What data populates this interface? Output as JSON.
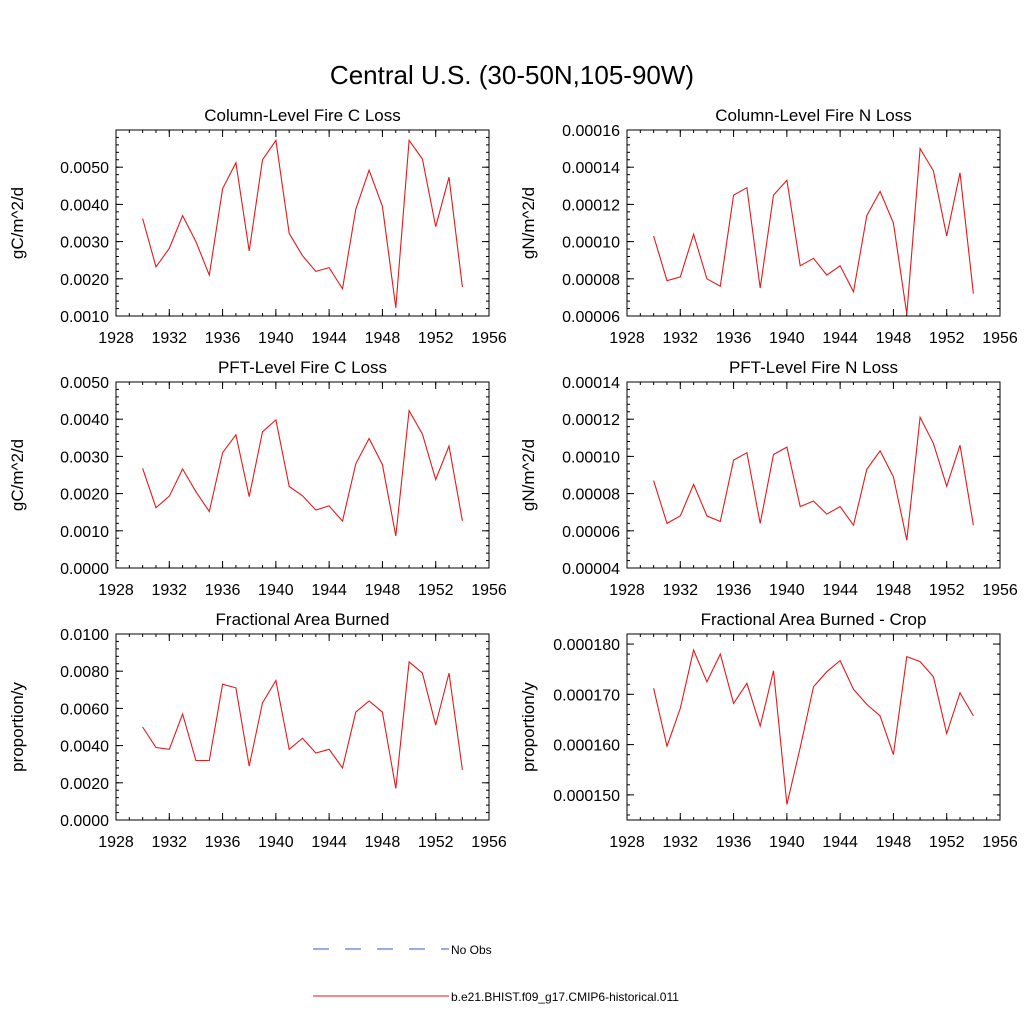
{
  "figure": {
    "title": "Central U.S. (30-50N,105-90W)",
    "legend": [
      {
        "label": "No Obs",
        "color": "#3b5bb5",
        "style": "dashed"
      },
      {
        "label": "b.e21.BHIST.f09_g17.CMIP6-historical.011",
        "color": "#e31a1c",
        "style": "solid"
      }
    ]
  },
  "chart_data": [
    {
      "type": "line",
      "title": "Column-Level Fire C Loss",
      "ylabel": "gC/m^2/d",
      "xlim": [
        1928,
        1956
      ],
      "ylim": [
        0.001,
        0.006
      ],
      "xticks": [
        1928,
        1932,
        1936,
        1940,
        1944,
        1948,
        1952,
        1956
      ],
      "xticklabels": [
        "1928",
        "1932",
        "1936",
        "1940",
        "1944",
        "1948",
        "1952",
        "1956"
      ],
      "yticks": [
        0.001,
        0.002,
        0.003,
        0.004,
        0.005
      ],
      "yticklabels": [
        "0.0010",
        "0.0020",
        "0.0030",
        "0.0040",
        "0.0050"
      ],
      "x": [
        1930,
        1931,
        1932,
        1933,
        1934,
        1935,
        1936,
        1937,
        1938,
        1939,
        1940,
        1941,
        1942,
        1943,
        1944,
        1945,
        1946,
        1947,
        1948,
        1949,
        1950,
        1951,
        1952,
        1953,
        1954
      ],
      "series": [
        {
          "color": "#e31a1c",
          "values": [
            0.00362,
            0.00232,
            0.00282,
            0.0037,
            0.003,
            0.0021,
            0.00442,
            0.00512,
            0.00275,
            0.0052,
            0.00572,
            0.00322,
            0.00262,
            0.0022,
            0.0023,
            0.00173,
            0.00387,
            0.00492,
            0.00395,
            0.00122,
            0.00572,
            0.00522,
            0.0034,
            0.00473,
            0.00178
          ]
        }
      ]
    },
    {
      "type": "line",
      "title": "Column-Level Fire N Loss",
      "ylabel": "gN/m^2/d",
      "xlim": [
        1928,
        1956
      ],
      "ylim": [
        6e-05,
        0.00016
      ],
      "xticks": [
        1928,
        1932,
        1936,
        1940,
        1944,
        1948,
        1952,
        1956
      ],
      "xticklabels": [
        "1928",
        "1932",
        "1936",
        "1940",
        "1944",
        "1948",
        "1952",
        "1956"
      ],
      "yticks": [
        6e-05,
        8e-05,
        0.0001,
        0.00012,
        0.00014,
        0.00016
      ],
      "yticklabels": [
        "0.00006",
        "0.00008",
        "0.00010",
        "0.00012",
        "0.00014",
        "0.00016"
      ],
      "x": [
        1930,
        1931,
        1932,
        1933,
        1934,
        1935,
        1936,
        1937,
        1938,
        1939,
        1940,
        1941,
        1942,
        1943,
        1944,
        1945,
        1946,
        1947,
        1948,
        1949,
        1950,
        1951,
        1952,
        1953,
        1954
      ],
      "series": [
        {
          "color": "#e31a1c",
          "values": [
            0.000103,
            7.9e-05,
            8.1e-05,
            0.000104,
            8e-05,
            7.6e-05,
            0.000125,
            0.000129,
            7.5e-05,
            0.000125,
            0.000133,
            8.7e-05,
            9.1e-05,
            8.2e-05,
            8.7e-05,
            7.3e-05,
            0.000114,
            0.000127,
            0.00011,
            6.1e-05,
            0.00015,
            0.000138,
            0.000103,
            0.000137,
            7.2e-05
          ]
        }
      ]
    },
    {
      "type": "line",
      "title": "PFT-Level Fire C Loss",
      "ylabel": "gC/m^2/d",
      "xlim": [
        1928,
        1956
      ],
      "ylim": [
        0.0,
        0.005
      ],
      "xticks": [
        1928,
        1932,
        1936,
        1940,
        1944,
        1948,
        1952,
        1956
      ],
      "xticklabels": [
        "1928",
        "1932",
        "1936",
        "1940",
        "1944",
        "1948",
        "1952",
        "1956"
      ],
      "yticks": [
        0.0,
        0.001,
        0.002,
        0.003,
        0.004,
        0.005
      ],
      "yticklabels": [
        "0.0000",
        "0.0010",
        "0.0020",
        "0.0030",
        "0.0040",
        "0.0050"
      ],
      "x": [
        1930,
        1931,
        1932,
        1933,
        1934,
        1935,
        1936,
        1937,
        1938,
        1939,
        1940,
        1941,
        1942,
        1943,
        1944,
        1945,
        1946,
        1947,
        1948,
        1949,
        1950,
        1951,
        1952,
        1953,
        1954
      ],
      "series": [
        {
          "color": "#e31a1c",
          "values": [
            0.00268,
            0.00162,
            0.00193,
            0.00266,
            0.00205,
            0.00152,
            0.0031,
            0.00358,
            0.00192,
            0.00366,
            0.00398,
            0.00219,
            0.00194,
            0.00156,
            0.00167,
            0.00126,
            0.0028,
            0.00348,
            0.00278,
            0.00086,
            0.00423,
            0.0036,
            0.00238,
            0.00328,
            0.00127
          ]
        }
      ]
    },
    {
      "type": "line",
      "title": "PFT-Level Fire N Loss",
      "ylabel": "gN/m^2/d",
      "xlim": [
        1928,
        1956
      ],
      "ylim": [
        4e-05,
        0.00014
      ],
      "xticks": [
        1928,
        1932,
        1936,
        1940,
        1944,
        1948,
        1952,
        1956
      ],
      "xticklabels": [
        "1928",
        "1932",
        "1936",
        "1940",
        "1944",
        "1948",
        "1952",
        "1956"
      ],
      "yticks": [
        4e-05,
        6e-05,
        8e-05,
        0.0001,
        0.00012,
        0.00014
      ],
      "yticklabels": [
        "0.00004",
        "0.00006",
        "0.00008",
        "0.00010",
        "0.00012",
        "0.00014"
      ],
      "x": [
        1930,
        1931,
        1932,
        1933,
        1934,
        1935,
        1936,
        1937,
        1938,
        1939,
        1940,
        1941,
        1942,
        1943,
        1944,
        1945,
        1946,
        1947,
        1948,
        1949,
        1950,
        1951,
        1952,
        1953,
        1954
      ],
      "series": [
        {
          "color": "#e31a1c",
          "values": [
            8.7e-05,
            6.4e-05,
            6.8e-05,
            8.5e-05,
            6.8e-05,
            6.5e-05,
            9.8e-05,
            0.000102,
            6.4e-05,
            0.000101,
            0.000105,
            7.3e-05,
            7.6e-05,
            6.9e-05,
            7.3e-05,
            6.3e-05,
            9.3e-05,
            0.000103,
            8.9e-05,
            5.5e-05,
            0.000121,
            0.000107,
            8.4e-05,
            0.000106,
            6.3e-05
          ]
        }
      ]
    },
    {
      "type": "line",
      "title": "Fractional Area Burned",
      "ylabel": "proportion/y",
      "xlim": [
        1928,
        1956
      ],
      "ylim": [
        0.0,
        0.01
      ],
      "xticks": [
        1928,
        1932,
        1936,
        1940,
        1944,
        1948,
        1952,
        1956
      ],
      "xticklabels": [
        "1928",
        "1932",
        "1936",
        "1940",
        "1944",
        "1948",
        "1952",
        "1956"
      ],
      "yticks": [
        0.0,
        0.002,
        0.004,
        0.006,
        0.008,
        0.01
      ],
      "yticklabels": [
        "0.0000",
        "0.0020",
        "0.0040",
        "0.0060",
        "0.0080",
        "0.0100"
      ],
      "x": [
        1930,
        1931,
        1932,
        1933,
        1934,
        1935,
        1936,
        1937,
        1938,
        1939,
        1940,
        1941,
        1942,
        1943,
        1944,
        1945,
        1946,
        1947,
        1948,
        1949,
        1950,
        1951,
        1952,
        1953,
        1954
      ],
      "series": [
        {
          "color": "#e31a1c",
          "values": [
            0.005,
            0.0039,
            0.0038,
            0.0057,
            0.0032,
            0.0032,
            0.0073,
            0.0071,
            0.0029,
            0.0063,
            0.0075,
            0.0038,
            0.0044,
            0.0036,
            0.0038,
            0.0028,
            0.0058,
            0.0064,
            0.0058,
            0.0017,
            0.0085,
            0.0079,
            0.0051,
            0.0079,
            0.0027
          ]
        }
      ]
    },
    {
      "type": "line",
      "title": "Fractional Area Burned - Crop",
      "ylabel": "proportion/y",
      "xlim": [
        1928,
        1956
      ],
      "ylim": [
        0.000145,
        0.000182
      ],
      "xticks": [
        1928,
        1932,
        1936,
        1940,
        1944,
        1948,
        1952,
        1956
      ],
      "xticklabels": [
        "1928",
        "1932",
        "1936",
        "1940",
        "1944",
        "1948",
        "1952",
        "1956"
      ],
      "yticks": [
        0.00015,
        0.00016,
        0.00017,
        0.00018
      ],
      "yticklabels": [
        "0.000150",
        "0.000160",
        "0.000170",
        "0.000180"
      ],
      "x": [
        1930,
        1931,
        1932,
        1933,
        1934,
        1935,
        1936,
        1937,
        1938,
        1939,
        1940,
        1941,
        1942,
        1943,
        1944,
        1945,
        1946,
        1947,
        1948,
        1949,
        1950,
        1951,
        1952,
        1953,
        1954
      ],
      "series": [
        {
          "color": "#e31a1c",
          "values": [
            0.0001712,
            0.0001597,
            0.0001672,
            0.0001788,
            0.0001725,
            0.000178,
            0.0001682,
            0.0001722,
            0.0001637,
            0.0001747,
            0.0001481,
            0.0001594,
            0.0001715,
            0.0001745,
            0.0001767,
            0.000171,
            0.000168,
            0.0001657,
            0.000158,
            0.0001775,
            0.0001765,
            0.0001735,
            0.0001622,
            0.0001703,
            0.0001657
          ]
        }
      ]
    }
  ]
}
